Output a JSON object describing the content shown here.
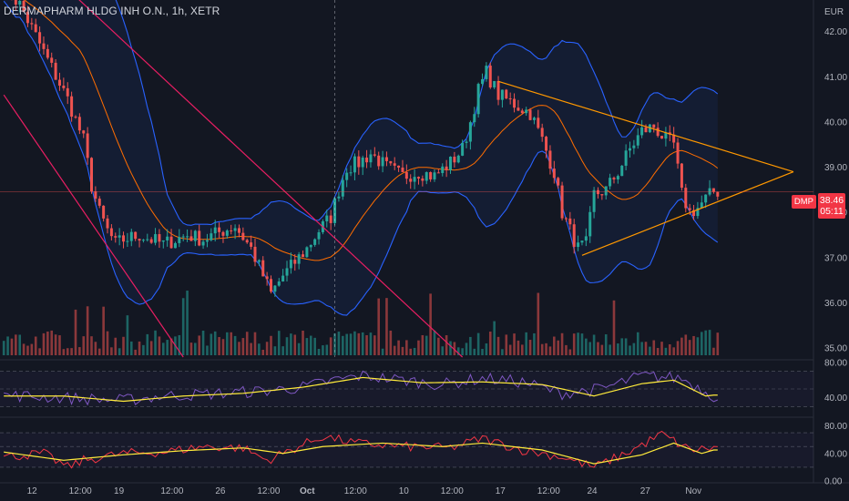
{
  "header": {
    "title": "DERMAPHARM HLDG INH O.N., 1h, XETR"
  },
  "axis": {
    "currency": "EUR"
  },
  "last": {
    "symbol": "DMP",
    "price": "38.46",
    "countdown": "05:11"
  },
  "colors": {
    "background": "#131722",
    "up": "#26a69a",
    "down": "#ef5350",
    "bb_band": "#2962ff",
    "bb_basis": "#ff6d00",
    "trendline": "#e91e63",
    "triangle": "#ff9800",
    "rsi": "#7e57c2",
    "rsi_ma": "#ffeb3b",
    "osc2": "#f23645"
  },
  "chart_data": [
    {
      "type": "candlestick",
      "title": "DERMAPHARM HLDG INH O.N., 1h, XETR",
      "ylabel": "EUR",
      "ylim": [
        34.8,
        42.7
      ],
      "yticks": [
        "42.00",
        "41.00",
        "40.00",
        "39.00",
        "38.00",
        "37.00",
        "36.00",
        "35.00"
      ],
      "xticks": [
        "12",
        "12:00",
        "19",
        "12:00",
        "26",
        "12:00",
        "Oct",
        "12:00",
        "10",
        "12:00",
        "17",
        "12:00",
        "24",
        "27",
        "Nov"
      ],
      "close_path": [
        [
          0,
          43.0
        ],
        [
          4,
          42.6
        ],
        [
          8,
          41.9
        ],
        [
          12,
          41.2
        ],
        [
          16,
          40.5
        ],
        [
          20,
          39.6
        ],
        [
          22,
          38.6
        ],
        [
          24,
          38.0
        ],
        [
          26,
          37.6
        ],
        [
          28,
          37.3
        ],
        [
          30,
          37.4
        ],
        [
          34,
          37.5
        ],
        [
          40,
          37.3
        ],
        [
          46,
          37.5
        ],
        [
          50,
          37.4
        ],
        [
          55,
          37.6
        ],
        [
          58,
          37.7
        ],
        [
          62,
          37.2
        ],
        [
          65,
          36.6
        ],
        [
          67,
          36.2
        ],
        [
          70,
          36.6
        ],
        [
          73,
          36.9
        ],
        [
          76,
          37.2
        ],
        [
          79,
          37.6
        ],
        [
          82,
          37.9
        ],
        [
          84,
          38.5
        ],
        [
          86,
          39.0
        ],
        [
          89,
          39.1
        ],
        [
          92,
          39.3
        ],
        [
          96,
          39.0
        ],
        [
          100,
          38.8
        ],
        [
          104,
          38.9
        ],
        [
          108,
          38.8
        ],
        [
          112,
          39.1
        ],
        [
          115,
          39.4
        ],
        [
          117,
          40.0
        ],
        [
          119,
          40.7
        ],
        [
          121,
          41.1
        ],
        [
          124,
          40.6
        ],
        [
          128,
          40.4
        ],
        [
          132,
          40.2
        ],
        [
          135,
          39.6
        ],
        [
          138,
          38.9
        ],
        [
          140,
          38.0
        ],
        [
          142,
          37.6
        ],
        [
          144,
          37.2
        ],
        [
          146,
          37.3
        ],
        [
          148,
          38.4
        ],
        [
          151,
          38.5
        ],
        [
          154,
          38.9
        ],
        [
          157,
          39.4
        ],
        [
          160,
          39.8
        ],
        [
          163,
          39.9
        ],
        [
          166,
          39.6
        ],
        [
          168,
          39.5
        ],
        [
          170,
          38.4
        ],
        [
          172,
          38.0
        ],
        [
          174,
          38.1
        ],
        [
          176,
          38.3
        ],
        [
          178,
          38.46
        ]
      ],
      "series": [
        {
          "name": "Price (OHLC)",
          "role": "candles"
        },
        {
          "name": "BB upper",
          "role": "band"
        },
        {
          "name": "BB basis",
          "role": "basis"
        },
        {
          "name": "BB lower",
          "role": "band"
        },
        {
          "name": "Volume",
          "role": "volume"
        }
      ],
      "annotations": [
        {
          "kind": "trendline",
          "from": [
            8,
            43.6
          ],
          "to": [
            115,
            34.8
          ]
        },
        {
          "kind": "trendline",
          "from": [
            0,
            40.6
          ],
          "to": [
            45,
            34.8
          ]
        },
        {
          "kind": "triangle-upper",
          "from": [
            124,
            40.9
          ],
          "to": [
            198,
            38.9
          ]
        },
        {
          "kind": "triangle-lower",
          "from": [
            145,
            37.05
          ],
          "to": [
            198,
            38.9
          ]
        },
        {
          "kind": "hline",
          "value": 38.46
        },
        {
          "kind": "vline",
          "x": 83
        }
      ]
    },
    {
      "type": "line",
      "title": "",
      "ylim": [
        20,
        80
      ],
      "yticks": [
        "80.00",
        "40.00"
      ],
      "guides": [
        70,
        50,
        30
      ],
      "series": [
        {
          "role": "osc",
          "path": [
            [
              0,
              43
            ],
            [
              15,
              40
            ],
            [
              30,
              37
            ],
            [
              40,
              42
            ],
            [
              55,
              45
            ],
            [
              66,
              48
            ],
            [
              75,
              52
            ],
            [
              83,
              60
            ],
            [
              90,
              65
            ],
            [
              100,
              60
            ],
            [
              110,
              55
            ],
            [
              120,
              62
            ],
            [
              130,
              58
            ],
            [
              140,
              45
            ],
            [
              150,
              50
            ],
            [
              160,
              65
            ],
            [
              170,
              62
            ],
            [
              178,
              42
            ]
          ]
        },
        {
          "role": "ma",
          "path": [
            [
              0,
              42
            ],
            [
              15,
              42
            ],
            [
              30,
              36
            ],
            [
              45,
              42
            ],
            [
              60,
              45
            ],
            [
              75,
              52
            ],
            [
              90,
              63
            ],
            [
              105,
              57
            ],
            [
              120,
              58
            ],
            [
              135,
              55
            ],
            [
              148,
              42
            ],
            [
              160,
              56
            ],
            [
              168,
              60
            ],
            [
              176,
              42
            ],
            [
              178,
              43
            ]
          ]
        }
      ]
    },
    {
      "type": "line",
      "title": "",
      "ylim": [
        0,
        90
      ],
      "yticks": [
        "80.00",
        "40.00",
        "0.00"
      ],
      "guides": [
        70,
        50,
        20
      ],
      "series": [
        {
          "role": "osc",
          "path": [
            [
              0,
              35
            ],
            [
              10,
              40
            ],
            [
              16,
              20
            ],
            [
              20,
              30
            ],
            [
              30,
              40
            ],
            [
              40,
              42
            ],
            [
              50,
              50
            ],
            [
              60,
              48
            ],
            [
              66,
              30
            ],
            [
              72,
              45
            ],
            [
              80,
              65
            ],
            [
              88,
              55
            ],
            [
              100,
              50
            ],
            [
              112,
              48
            ],
            [
              120,
              62
            ],
            [
              130,
              45
            ],
            [
              140,
              35
            ],
            [
              148,
              20
            ],
            [
              156,
              40
            ],
            [
              165,
              68
            ],
            [
              172,
              45
            ],
            [
              178,
              48
            ]
          ]
        },
        {
          "role": "ma",
          "path": [
            [
              0,
              42
            ],
            [
              15,
              30
            ],
            [
              30,
              38
            ],
            [
              45,
              44
            ],
            [
              60,
              48
            ],
            [
              70,
              40
            ],
            [
              80,
              50
            ],
            [
              95,
              55
            ],
            [
              110,
              50
            ],
            [
              120,
              55
            ],
            [
              135,
              45
            ],
            [
              148,
              25
            ],
            [
              160,
              38
            ],
            [
              168,
              55
            ],
            [
              175,
              40
            ],
            [
              178,
              45
            ]
          ]
        }
      ]
    }
  ]
}
